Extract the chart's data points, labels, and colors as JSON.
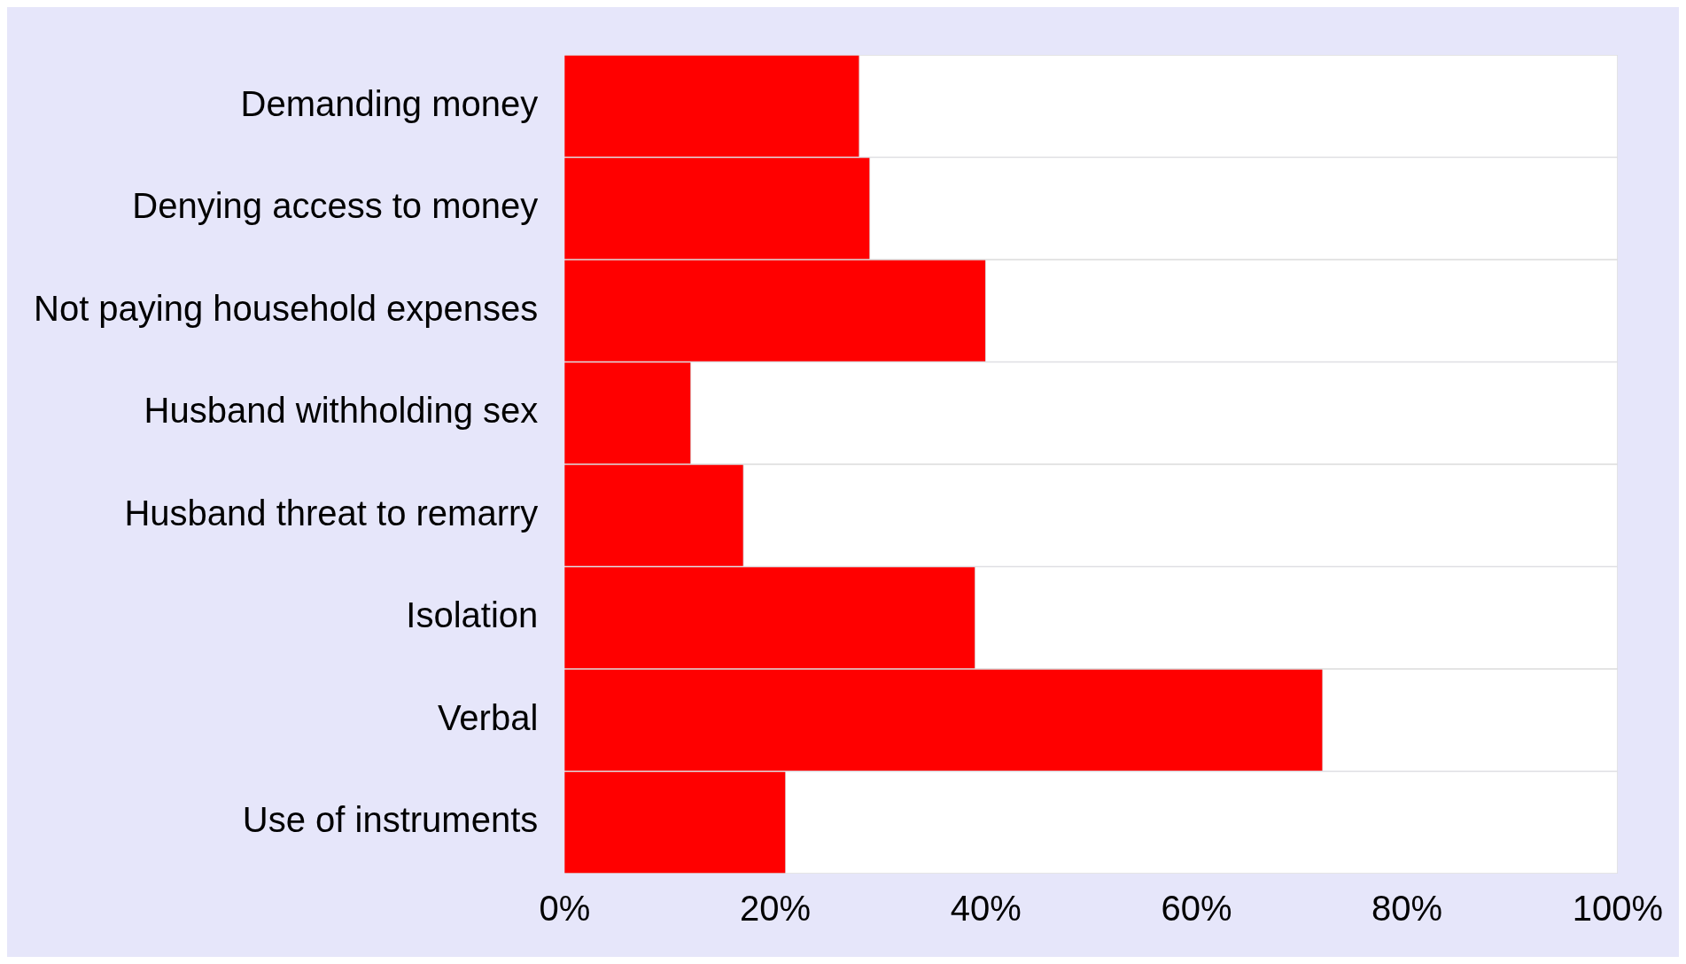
{
  "chart_data": {
    "type": "bar",
    "orientation": "horizontal",
    "stacked": true,
    "categories": [
      "Demanding money",
      "Denying access to money",
      "Not paying household expenses",
      "Husband withholding sex",
      "Husband threat to remarry",
      "Isolation",
      "Verbal",
      "Use of instruments"
    ],
    "series": [
      {
        "color": "#ff0000",
        "values": [
          28,
          29,
          40,
          12,
          17,
          39,
          72,
          21
        ]
      },
      {
        "color": "#ffffff",
        "values": [
          72,
          71,
          60,
          88,
          83,
          61,
          28,
          79
        ]
      }
    ],
    "xlim": [
      0,
      100
    ],
    "xticks": [
      {
        "value": 0,
        "label": "0%"
      },
      {
        "value": 20,
        "label": "20%"
      },
      {
        "value": 40,
        "label": "40%"
      },
      {
        "value": 60,
        "label": "60%"
      },
      {
        "value": 80,
        "label": "80%"
      },
      {
        "value": 100,
        "label": "100%"
      }
    ],
    "grid": false,
    "legend": false
  }
}
